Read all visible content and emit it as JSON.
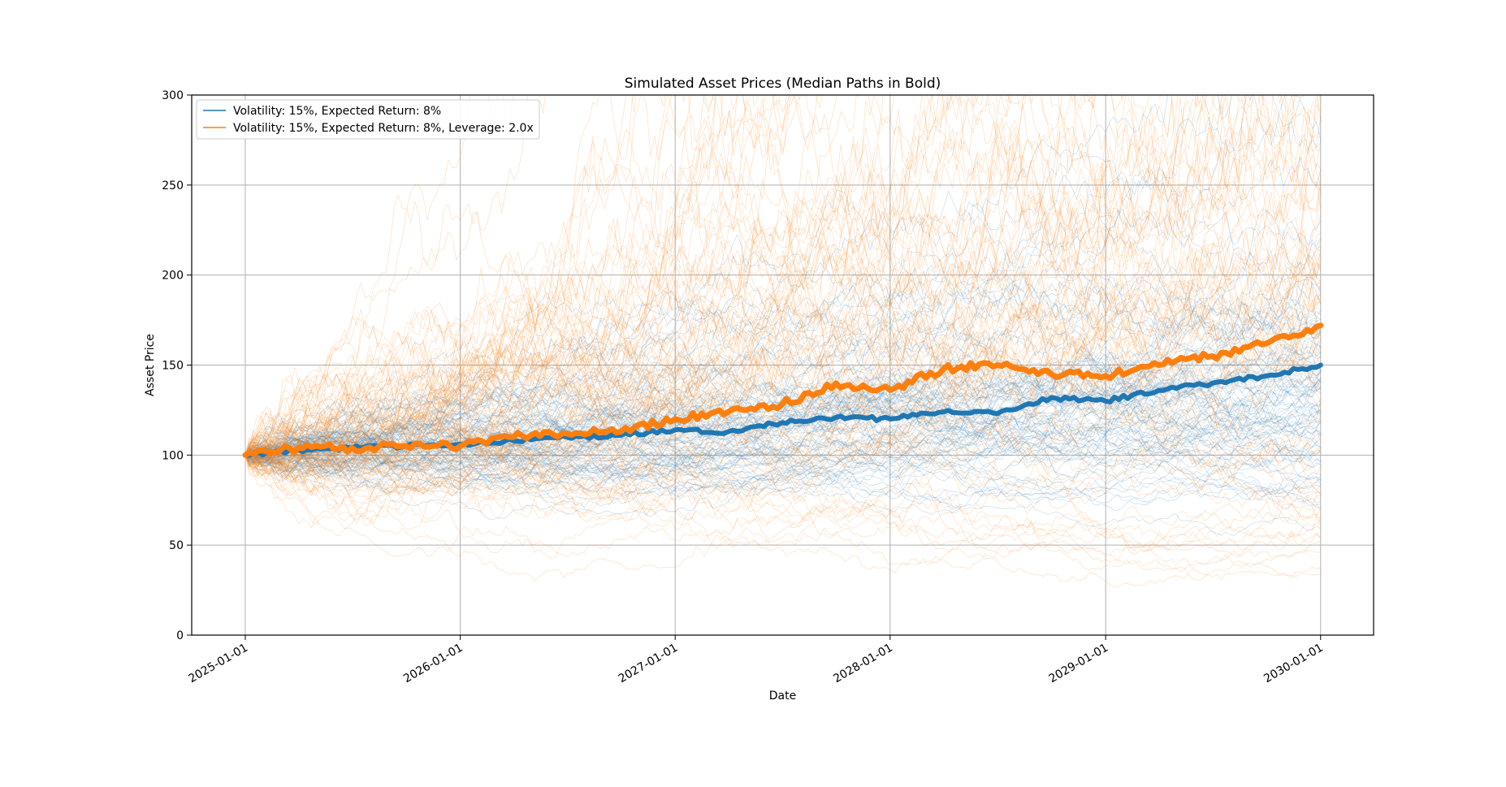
{
  "chart_data": {
    "type": "line",
    "title": "Simulated Asset Prices (Median Paths in Bold)",
    "xlabel": "Date",
    "ylabel": "Asset Price",
    "x_type": "date",
    "xlim": [
      "2024-10-02",
      "2030-04-01"
    ],
    "ylim": [
      0,
      300
    ],
    "grid": true,
    "legend_position": "top-left",
    "x_ticks": [
      "2025-01-01",
      "2026-01-01",
      "2027-01-01",
      "2028-01-01",
      "2029-01-01",
      "2030-01-01"
    ],
    "y_ticks": [
      0,
      50,
      100,
      150,
      200,
      250,
      300
    ],
    "series": [
      {
        "name": "Volatility: 15%, Expected Return: 8%",
        "color": "#1f77b4",
        "volatility": 0.15,
        "expected_return": 0.08,
        "median_path": {
          "x": [
            "2025-01-01",
            "2025-04-01",
            "2025-07-01",
            "2025-10-01",
            "2026-01-01",
            "2026-04-01",
            "2026-07-01",
            "2026-10-01",
            "2027-01-01",
            "2027-04-01",
            "2027-07-01",
            "2027-10-01",
            "2028-01-01",
            "2028-04-01",
            "2028-07-01",
            "2028-10-01",
            "2029-01-01",
            "2029-04-01",
            "2029-07-01",
            "2029-10-01",
            "2030-01-01"
          ],
          "y": [
            100,
            103,
            104,
            105,
            106,
            108,
            110,
            111,
            114,
            113,
            118,
            121,
            120,
            124,
            123,
            132,
            130,
            136,
            140,
            144,
            150
          ]
        },
        "simulated_paths_shown": true
      },
      {
        "name": "Volatility: 15%, Expected Return: 8%, Leverage: 2.0x",
        "color": "#ff7f0e",
        "volatility": 0.15,
        "expected_return": 0.08,
        "leverage": 2.0,
        "median_path": {
          "x": [
            "2025-01-01",
            "2025-04-01",
            "2025-07-01",
            "2025-10-01",
            "2026-01-01",
            "2026-04-01",
            "2026-07-01",
            "2026-10-01",
            "2027-01-01",
            "2027-04-01",
            "2027-07-01",
            "2027-10-01",
            "2028-01-01",
            "2028-04-01",
            "2028-07-01",
            "2028-10-01",
            "2029-01-01",
            "2029-04-01",
            "2029-07-01",
            "2029-10-01",
            "2030-01-01"
          ],
          "y": [
            100,
            104,
            104,
            105,
            105,
            110,
            112,
            113,
            120,
            124,
            128,
            140,
            136,
            148,
            150,
            145,
            144,
            150,
            155,
            162,
            172
          ]
        },
        "simulated_paths_shown": true
      }
    ]
  }
}
